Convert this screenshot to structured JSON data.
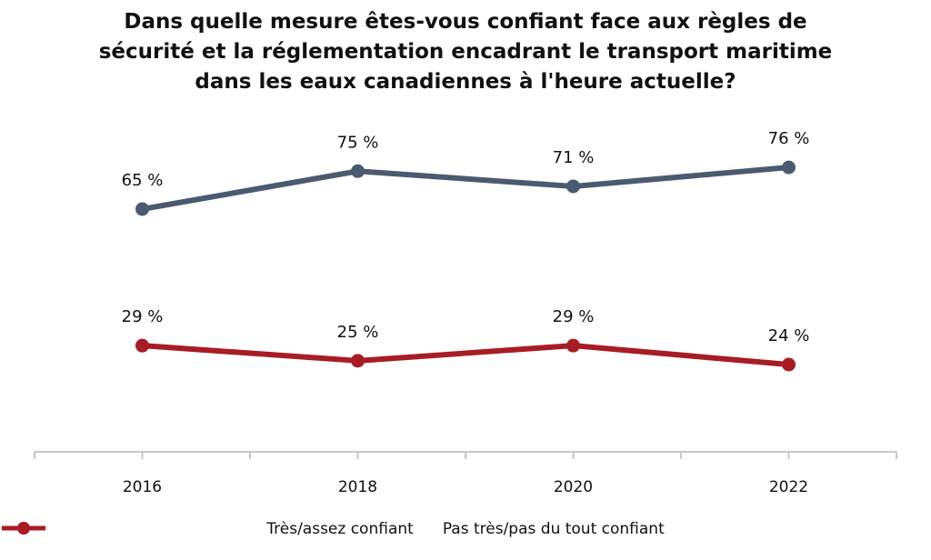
{
  "title_lines": [
    "Dans quelle mesure êtes-vous confiant face aux règles de",
    "sécurité et la réglementation encadrant le transport maritime",
    "dans les eaux canadiennes à l'heure actuelle?"
  ],
  "colors": {
    "series_1": "#4a5a70",
    "series_2": "#a81c25",
    "axis": "#c8c8c8"
  },
  "chart_data": {
    "type": "line",
    "title": "Dans quelle mesure êtes-vous confiant face aux règles de sécurité et la réglementation encadrant le transport maritime dans les eaux canadiennes à l'heure actuelle?",
    "categories": [
      "2016",
      "2018",
      "2020",
      "2022"
    ],
    "series": [
      {
        "name": "Très/assez confiant",
        "values": [
          65,
          75,
          71,
          76
        ],
        "labels": [
          "65 %",
          "75 %",
          "71 %",
          "76 %"
        ]
      },
      {
        "name": "Pas très/pas du tout confiant",
        "values": [
          29,
          25,
          29,
          24
        ],
        "labels": [
          "29 %",
          "25 %",
          "29 %",
          "24 %"
        ]
      }
    ],
    "xlabel": "",
    "ylabel": "",
    "ylim": [
      0,
      85
    ],
    "grid": false,
    "legend_position": "bottom"
  }
}
